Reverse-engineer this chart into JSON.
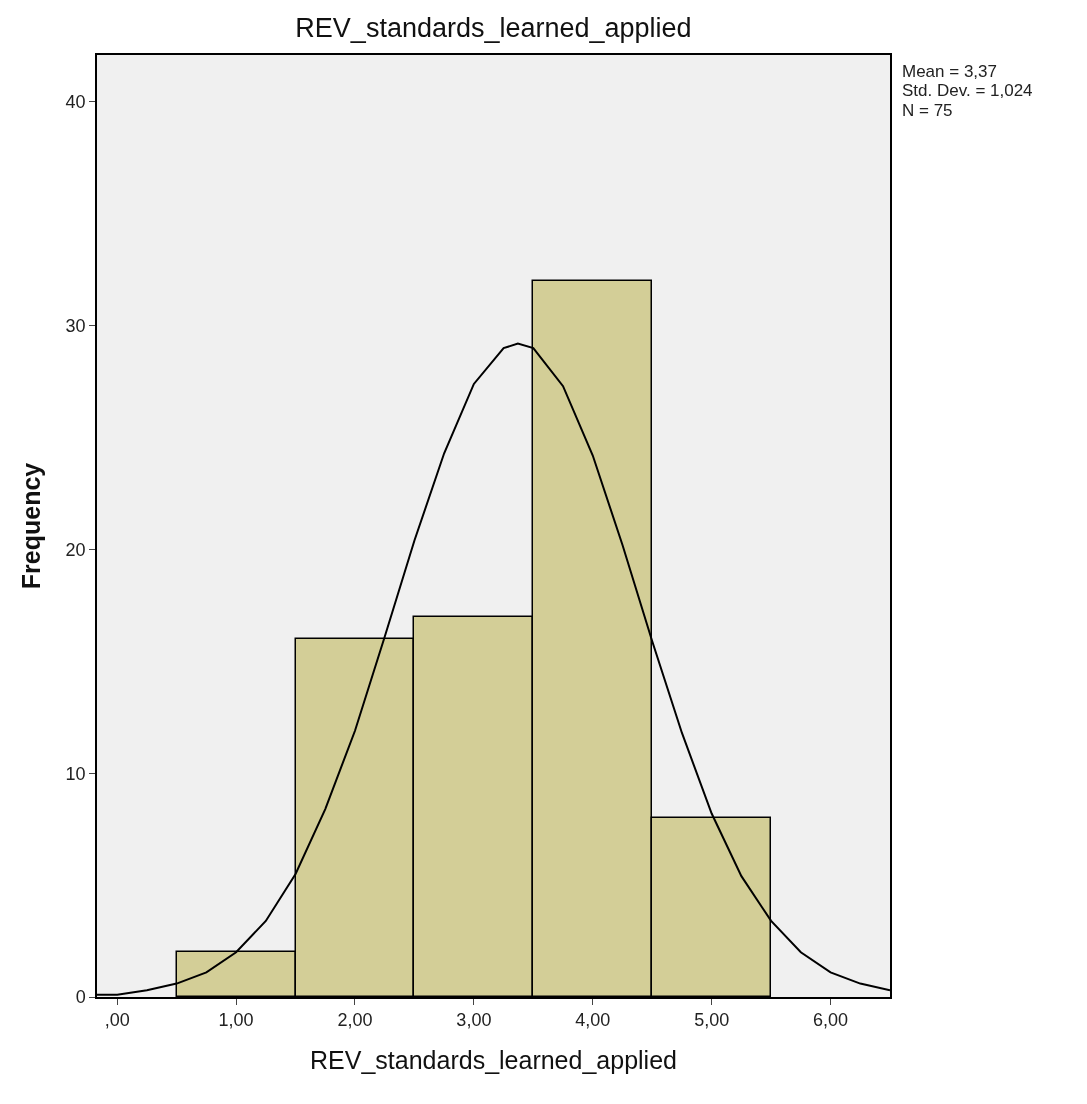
{
  "chart_data": {
    "type": "histogram",
    "title": "REV_standards_learned_applied",
    "xlabel": "REV_standards_learned_applied",
    "ylabel": "Frequency",
    "bins": [
      0.5,
      1.5,
      2.5,
      3.5,
      4.5,
      5.5
    ],
    "values": [
      2,
      16,
      17,
      32,
      8
    ],
    "color": "#d3ce97",
    "series": [
      {
        "type": "line",
        "color": "#000000",
        "x": [
          -0.17,
          0,
          0.25,
          0.5,
          0.75,
          1,
          1.25,
          1.5,
          1.75,
          2,
          2.25,
          2.5,
          2.75,
          3,
          3.25,
          3.37,
          3.5,
          3.75,
          4,
          4.25,
          4.5,
          4.75,
          5,
          5.25,
          5.5,
          5.75,
          6,
          6.25,
          6.5
        ],
        "values": [
          0.1,
          0.1,
          0.3,
          0.6,
          1.1,
          2.0,
          3.4,
          5.5,
          8.4,
          11.9,
          16.1,
          20.4,
          24.3,
          27.4,
          29.0,
          29.2,
          29.0,
          27.3,
          24.2,
          20.2,
          15.9,
          11.8,
          8.2,
          5.4,
          3.4,
          2.0,
          1.1,
          0.6,
          0.3
        ]
      }
    ],
    "xlim": [
      -0.17,
      6.5
    ],
    "ylim": [
      0,
      42.1
    ],
    "xticks": [
      {
        "value": 0,
        "label": ",00"
      },
      {
        "value": 1,
        "label": "1,00"
      },
      {
        "value": 2,
        "label": "2,00"
      },
      {
        "value": 3,
        "label": "3,00"
      },
      {
        "value": 4,
        "label": "4,00"
      },
      {
        "value": 5,
        "label": "5,00"
      },
      {
        "value": 6,
        "label": "6,00"
      }
    ],
    "yticks": [
      0,
      10,
      20,
      30,
      40
    ],
    "annotations": [
      "Mean = 3,37",
      "Std. Dev. = 1,024",
      "N = 75"
    ],
    "grid": false
  }
}
